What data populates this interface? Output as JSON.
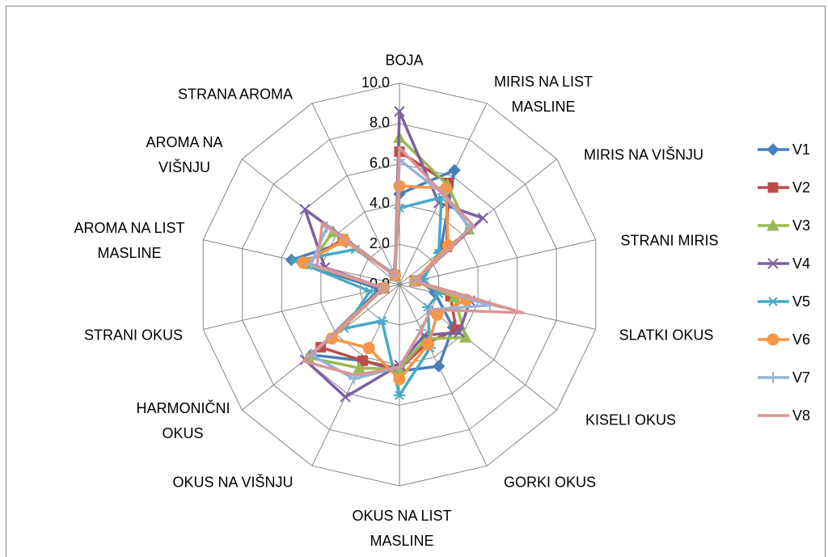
{
  "chart_data": {
    "type": "radar",
    "categories": [
      "BOJA",
      "MIRIS NA LIST MASLINE",
      "MIRIS NA VIŠNJU",
      "STRANI MIRIS",
      "SLATKI OKUS",
      "KISELI OKUS",
      "GORKI OKUS",
      "OKUS NA LIST MASLINE",
      "OKUS NA VIŠNJU",
      "HARMONIČNI OKUS",
      "STRANI OKUS",
      "AROMA NA LIST MASLINE",
      "AROMA NA VIŠNJU",
      "STRANA AROMA"
    ],
    "ylim": [
      0,
      10
    ],
    "yticks": [
      {
        "value": 0,
        "label": "0.0"
      },
      {
        "value": 2,
        "label": "2.0"
      },
      {
        "value": 4,
        "label": "4.0"
      },
      {
        "value": 6,
        "label": "6.0"
      },
      {
        "value": 8,
        "label": "8.0"
      },
      {
        "value": 10,
        "label": "10.0"
      }
    ],
    "grid": true,
    "legend": "right",
    "series": [
      {
        "name": "V1",
        "color": "#4a7ebb",
        "values": [
          4.5,
          6.3,
          2.6,
          1.0,
          1.8,
          3.4,
          4.5,
          4.3,
          4.2,
          5.6,
          1.0,
          5.5,
          3.4,
          0.6
        ]
      },
      {
        "name": "V2",
        "color": "#be4b48",
        "values": [
          6.6,
          5.6,
          3.0,
          0.8,
          2.6,
          3.6,
          3.2,
          4.2,
          4.2,
          5.0,
          0.8,
          4.8,
          3.6,
          0.5
        ]
      },
      {
        "name": "V3",
        "color": "#98b954",
        "values": [
          7.3,
          5.5,
          4.4,
          0.8,
          2.8,
          4.2,
          3.0,
          4.2,
          4.6,
          5.8,
          0.8,
          4.6,
          4.2,
          0.5
        ]
      },
      {
        "name": "V4",
        "color": "#7d60a0",
        "values": [
          8.6,
          4.5,
          5.3,
          0.8,
          3.6,
          3.8,
          2.8,
          4.0,
          6.2,
          6.0,
          0.8,
          3.8,
          6.0,
          0.5
        ]
      },
      {
        "name": "V5",
        "color": "#46aac5",
        "values": [
          3.8,
          4.8,
          2.5,
          1.2,
          2.0,
          1.8,
          3.5,
          5.5,
          2.0,
          3.5,
          1.5,
          5.3,
          2.8,
          0.6
        ]
      },
      {
        "name": "V6",
        "color": "#f79646",
        "values": [
          4.9,
          5.3,
          3.1,
          0.8,
          3.4,
          2.4,
          3.3,
          4.7,
          3.5,
          4.3,
          0.8,
          4.9,
          3.5,
          0.5
        ]
      },
      {
        "name": "V7",
        "color": "#95b3d7",
        "values": [
          6.2,
          5.0,
          4.5,
          0.8,
          4.6,
          2.0,
          2.5,
          4.1,
          5.2,
          5.6,
          0.8,
          4.5,
          4.6,
          0.5
        ]
      },
      {
        "name": "V8",
        "color": "#d99694",
        "values": [
          6.8,
          5.0,
          4.7,
          0.8,
          6.3,
          2.0,
          2.5,
          4.1,
          5.0,
          6.1,
          0.8,
          4.2,
          4.9,
          0.5
        ]
      }
    ]
  }
}
